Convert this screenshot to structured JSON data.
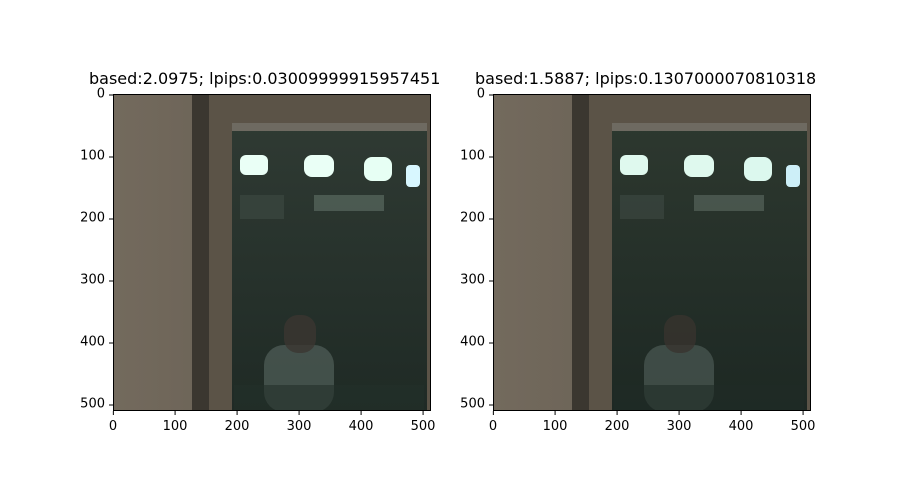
{
  "figure": {
    "panels": [
      {
        "title": "based:2.0975; lpips:0.03009999915957451",
        "image_description": "",
        "x_ticks": [
          "0",
          "100",
          "200",
          "300",
          "400",
          "500"
        ],
        "y_ticks": [
          "0",
          "100",
          "200",
          "300",
          "400",
          "500"
        ]
      },
      {
        "title": "based:1.5887; lpips:0.1307000070810318",
        "image_description": "",
        "x_ticks": [
          "0",
          "100",
          "200",
          "300",
          "400",
          "500"
        ],
        "y_ticks": [
          "0",
          "100",
          "200",
          "300",
          "400",
          "500"
        ]
      }
    ]
  },
  "colors": {
    "wall": "#6f6558",
    "frame": "#3d3a33",
    "glass": "#25302a",
    "light": "#e7fff4"
  }
}
